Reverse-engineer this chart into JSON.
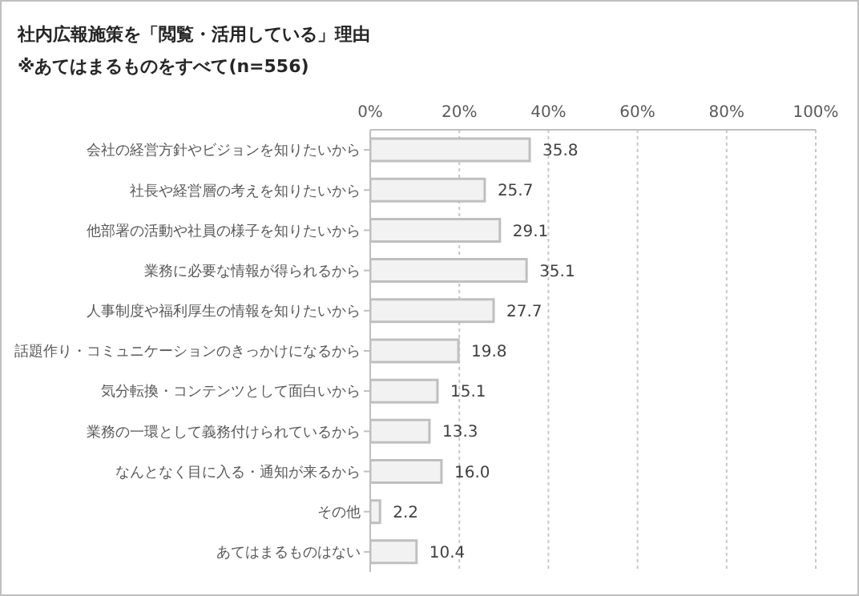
{
  "chart_data": {
    "type": "bar",
    "orientation": "horizontal",
    "title": "社内広報施策を「閲覧・活用している」理由",
    "subtitle": "※あてはまるものをすべて(n=556)",
    "categories": [
      "会社の経営方針やビジョンを知りたいから",
      "社長や経営層の考えを知りたいから",
      "他部署の活動や社員の様子を知りたいから",
      "業務に必要な情報が得られるから",
      "人事制度や福利厚生の情報を知りたいから",
      "話題作り・コミュニケーションのきっかけになるから",
      "気分転換・コンテンツとして面白いから",
      "業務の一環として義務付けられているから",
      "なんとなく目に入る・通知が来るから",
      "その他",
      "あてはまるものはない"
    ],
    "values": [
      35.8,
      25.7,
      29.1,
      35.1,
      27.7,
      19.8,
      15.1,
      13.3,
      16.0,
      2.2,
      10.4
    ],
    "value_labels": [
      "35.8",
      "25.7",
      "29.1",
      "35.1",
      "27.7",
      "19.8",
      "15.1",
      "13.3",
      "16.0",
      "2.2",
      "10.4"
    ],
    "color": "#f2f2f2",
    "xlim": [
      0,
      100
    ],
    "xticks": [
      {
        "value": 0,
        "label": "0%"
      },
      {
        "value": 20,
        "label": "20%"
      },
      {
        "value": 40,
        "label": "40%"
      },
      {
        "value": 60,
        "label": "60%"
      },
      {
        "value": 80,
        "label": "80%"
      },
      {
        "value": 100,
        "label": "100%"
      }
    ],
    "grid": "x",
    "legend": false
  }
}
